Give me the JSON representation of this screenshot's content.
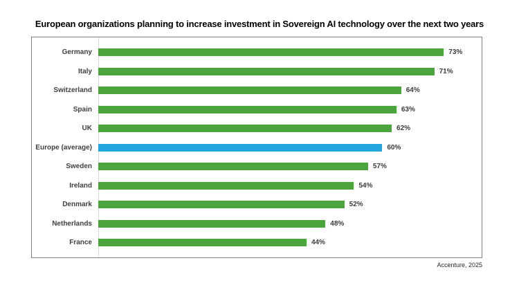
{
  "title": "European organizations planning to increase investment in Sovereign AI technology over the next two years",
  "source": "Accenture, 2025",
  "colors": {
    "bar_green": "#4BA43C",
    "bar_highlight_blue": "#22A5DE",
    "frame_border": "#808080",
    "axis_line": "#d9d9d9",
    "label_text": "#3f3f3f",
    "value_text": "#3c3c3c"
  },
  "chart_data": {
    "type": "bar",
    "orientation": "horizontal",
    "title": "European organizations planning to increase investment in Sovereign AI technology over the next two years",
    "categories": [
      "Germany",
      "Italy",
      "Switzerland",
      "Spain",
      "UK",
      "Europe (average)",
      "Sweden",
      "Ireland",
      "Denmark",
      "Netherlands",
      "France"
    ],
    "values": [
      73,
      71,
      64,
      63,
      62,
      60,
      57,
      54,
      52,
      48,
      44
    ],
    "value_suffix": "%",
    "highlight_category": "Europe (average)",
    "highlight_value": 60,
    "xlabel": "",
    "ylabel": "",
    "xlim": [
      0,
      81
    ],
    "grid": false,
    "legend": "none",
    "value_labels": "end-of-bar",
    "source": "Accenture, 2025"
  }
}
